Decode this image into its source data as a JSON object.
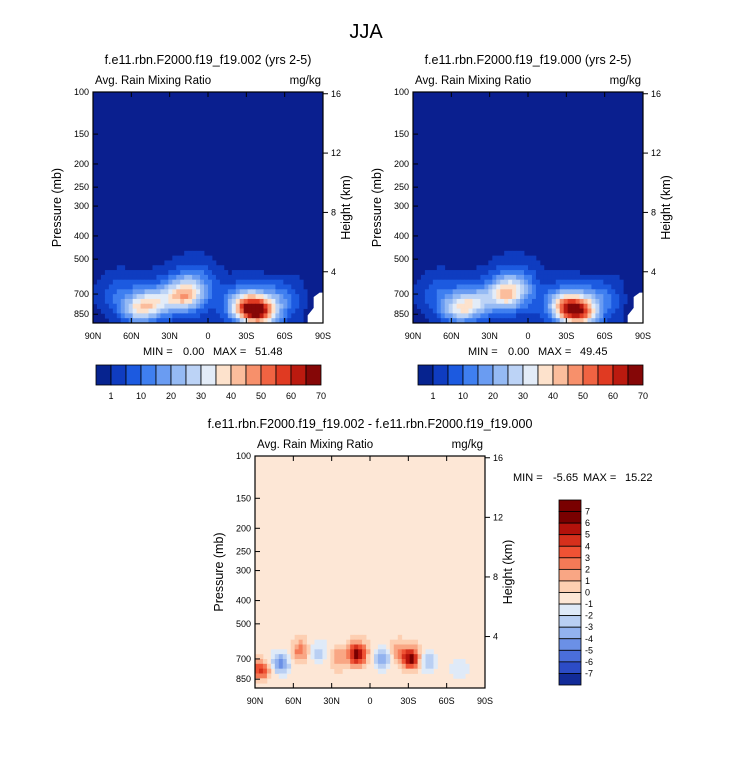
{
  "season_title": "JJA",
  "chart_data": [
    {
      "type": "heatmap",
      "id": "panel1",
      "title": "f.e11.rbn.F2000.f19_f19.002 (yrs 2-5)",
      "subtitle_left": "Avg. Rain Mixing Ratio",
      "subtitle_right": "mg/kg",
      "xlabel": "",
      "ylabel": "Pressure (mb)",
      "ylabel_right": "Height (km)",
      "x_ticks": [
        "90N",
        "60N",
        "30N",
        "0",
        "30S",
        "60S",
        "90S"
      ],
      "y_ticks": [
        "100",
        "150",
        "200",
        "250",
        "300",
        "400",
        "500",
        "700",
        "850"
      ],
      "y_ticks_right": [
        "16",
        "12",
        "8",
        "4"
      ],
      "min_label": "MIN =",
      "min_value": "0.00",
      "max_label": "MAX =",
      "max_value": "51.48",
      "colorbar_ticks": [
        "1",
        "10",
        "20",
        "30",
        "40",
        "50",
        "60",
        "70"
      ],
      "features": [
        {
          "lat": 55,
          "p": 810,
          "v": 26
        },
        {
          "lat": 42,
          "p": 760,
          "v": 24
        },
        {
          "lat": 20,
          "p": 710,
          "v": 38
        },
        {
          "lat": 8,
          "p": 650,
          "v": 14
        },
        {
          "lat": -30,
          "p": 780,
          "v": 40
        },
        {
          "lat": -40,
          "p": 840,
          "v": 51
        },
        {
          "lat": -55,
          "p": 730,
          "v": 12
        },
        {
          "lat": 70,
          "p": 700,
          "v": 8
        }
      ]
    },
    {
      "type": "heatmap",
      "id": "panel2",
      "title": "f.e11.rbn.F2000.f19_f19.000 (yrs 2-5)",
      "subtitle_left": "Avg. Rain Mixing Ratio",
      "subtitle_right": "mg/kg",
      "xlabel": "",
      "ylabel": "Pressure (mb)",
      "ylabel_right": "Height (km)",
      "x_ticks": [
        "90N",
        "60N",
        "30N",
        "0",
        "30S",
        "60S",
        "90S"
      ],
      "y_ticks": [
        "100",
        "150",
        "200",
        "250",
        "300",
        "400",
        "500",
        "700",
        "850"
      ],
      "y_ticks_right": [
        "16",
        "12",
        "8",
        "4"
      ],
      "min_label": "MIN =",
      "min_value": "0.00",
      "max_label": "MAX =",
      "max_value": "49.45",
      "colorbar_ticks": [
        "1",
        "10",
        "20",
        "30",
        "40",
        "50",
        "60",
        "70"
      ],
      "features": [
        {
          "lat": 55,
          "p": 810,
          "v": 25
        },
        {
          "lat": 42,
          "p": 760,
          "v": 22
        },
        {
          "lat": 18,
          "p": 700,
          "v": 36
        },
        {
          "lat": 6,
          "p": 650,
          "v": 13
        },
        {
          "lat": -30,
          "p": 780,
          "v": 38
        },
        {
          "lat": -40,
          "p": 840,
          "v": 49
        },
        {
          "lat": -55,
          "p": 730,
          "v": 11
        },
        {
          "lat": 70,
          "p": 700,
          "v": 8
        }
      ]
    },
    {
      "type": "heatmap",
      "id": "panel3",
      "title": "f.e11.rbn.F2000.f19_f19.002 - f.e11.rbn.F2000.f19_f19.000",
      "subtitle_left": "Avg. Rain Mixing Ratio",
      "subtitle_right": "mg/kg",
      "xlabel": "",
      "ylabel": "Pressure (mb)",
      "ylabel_right": "Height (km)",
      "x_ticks": [
        "90N",
        "60N",
        "30N",
        "0",
        "30S",
        "60S",
        "90S"
      ],
      "y_ticks": [
        "100",
        "150",
        "200",
        "250",
        "300",
        "400",
        "500",
        "700",
        "850"
      ],
      "y_ticks_right": [
        "16",
        "12",
        "8",
        "4"
      ],
      "min_label": "MIN =",
      "min_value": "-5.65",
      "max_label": "MAX =",
      "max_value": "15.22",
      "colorbar_ticks": [
        "7",
        "6",
        "5",
        "4",
        "3",
        "2",
        "1",
        "0",
        "-1",
        "-2",
        "-3",
        "-4",
        "-5",
        "-6",
        "-7"
      ],
      "features": [
        {
          "lat": 10,
          "p": 670,
          "v": 7.5
        },
        {
          "lat": -32,
          "p": 700,
          "v": 7
        },
        {
          "lat": 86,
          "p": 780,
          "v": 5
        },
        {
          "lat": 70,
          "p": 730,
          "v": -4
        },
        {
          "lat": 55,
          "p": 650,
          "v": 3
        },
        {
          "lat": 40,
          "p": 660,
          "v": -2
        },
        {
          "lat": 25,
          "p": 700,
          "v": 2.5
        },
        {
          "lat": -10,
          "p": 700,
          "v": -3
        },
        {
          "lat": -22,
          "p": 650,
          "v": 2
        },
        {
          "lat": -45,
          "p": 720,
          "v": -2.5
        },
        {
          "lat": -70,
          "p": 760,
          "v": -1.5
        },
        {
          "lat": 60,
          "p": 450,
          "v": -0.8
        },
        {
          "lat": -5,
          "p": 430,
          "v": -0.8
        }
      ]
    }
  ],
  "colors": {
    "background_fill": "#0a1f8f",
    "diff_background": "#fde7d6",
    "frame": "#000000"
  }
}
